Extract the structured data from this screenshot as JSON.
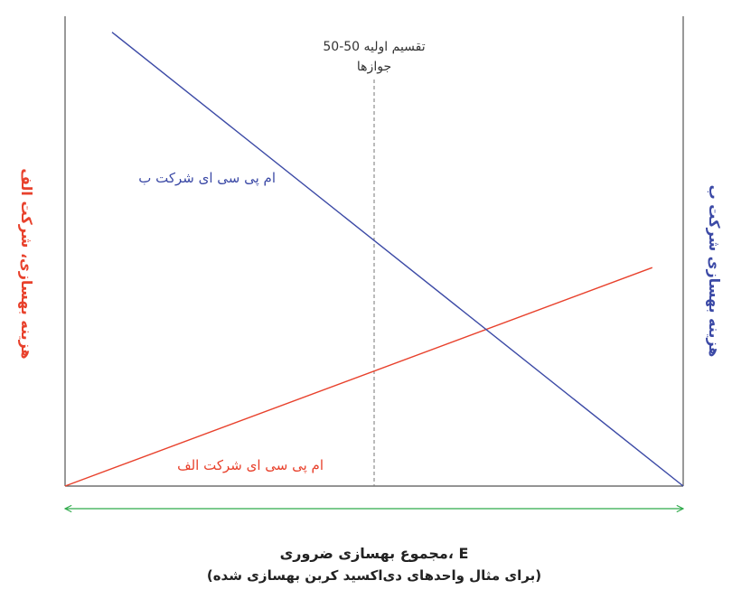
{
  "chart_data": {
    "type": "line",
    "xlabel_line1": "مجموع بهسازی ضروری، E",
    "xlabel_line2": "(برای مثال واحدهای دی‌اکسید کربن بهسازی شده)",
    "ylabel_left": "هزینه بهسازی، شرکت الف",
    "ylabel_right": "هزینه بهسازی شرکت ب",
    "xlim": [
      0,
      100
    ],
    "ylim": [
      0,
      100
    ],
    "grid": false,
    "colors": {
      "firm_a": "#e8412c",
      "firm_b": "#3c4aa6",
      "axis_arrow": "#2eaa4a",
      "axes": "#555555",
      "allocation_line": "#777777"
    },
    "series": [
      {
        "name": "ام پی سی ای شرکت الف",
        "color_key": "firm_a",
        "x": [
          0,
          95
        ],
        "y": [
          0,
          46.5
        ]
      },
      {
        "name": "ام پی سی ای شرکت ب",
        "color_key": "firm_b",
        "x": [
          7.6,
          100
        ],
        "y": [
          96.6,
          0
        ]
      }
    ],
    "annotations": [
      {
        "line1": "تقسیم اولیه 50-50",
        "line2": "جوازها",
        "x": 50
      }
    ]
  }
}
